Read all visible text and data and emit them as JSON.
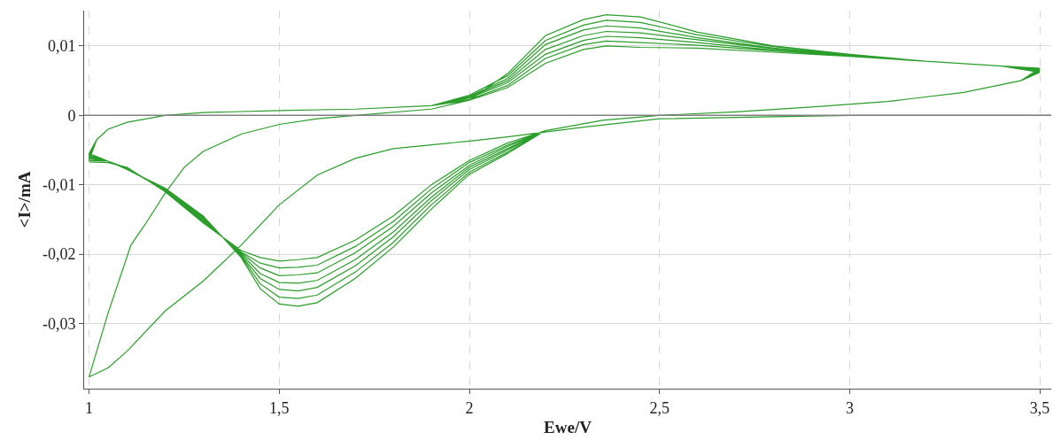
{
  "chart_data": {
    "type": "line",
    "xlabel": "Ewe/V",
    "ylabel": "<I>/mA",
    "xlim": [
      0.987,
      3.53
    ],
    "ylim": [
      -0.0394,
      0.0151
    ],
    "xticks": [
      1,
      {
        "value": 1.5,
        "label": "1,5"
      },
      2,
      {
        "value": 2.5,
        "label": "2,5"
      },
      3,
      {
        "value": 3.5,
        "label": "3,5"
      }
    ],
    "yticks": [
      {
        "value": -0.03,
        "label": "-0,03"
      },
      {
        "value": -0.02,
        "label": "-0,02"
      },
      {
        "value": -0.01,
        "label": "-0,01"
      },
      0,
      {
        "value": 0.01,
        "label": "0,01"
      }
    ],
    "grid": true,
    "marker": "none",
    "line_style": "solid",
    "ref_lines": [
      {
        "axis": "y",
        "value": 0,
        "color": "#808080"
      }
    ],
    "series": [
      {
        "color": "#2a9d2a",
        "x": [
          3.53,
          3.5,
          3.0,
          2.8,
          2.5,
          2.3,
          2.1,
          2.0,
          1.8,
          1.7,
          1.6,
          1.5,
          1.4,
          1.3,
          1.2,
          1.1,
          1.05,
          1.0,
          1.05,
          1.11,
          1.15,
          1.2,
          1.25,
          1.3,
          1.4,
          1.5,
          1.6,
          1.7,
          1.9,
          2.0,
          2.1,
          2.2,
          2.3,
          2.36,
          2.45,
          2.6,
          2.8,
          3.0,
          3.2,
          3.4,
          3.5,
          3.45,
          3.3,
          3.1,
          2.9,
          2.7,
          2.5,
          2.35,
          2.2,
          2.1,
          2.0,
          1.9,
          1.8,
          1.7,
          1.6,
          1.55,
          1.5,
          1.45,
          1.4,
          1.3,
          1.2,
          1.1,
          1.05,
          1.0,
          1.02,
          1.05,
          1.1,
          1.2,
          1.3,
          1.5,
          1.7,
          1.9,
          2.0,
          2.1,
          2.2,
          2.3,
          2.36,
          2.45,
          2.6,
          2.8,
          3.0,
          3.2,
          3.4,
          3.5,
          3.45,
          3.3,
          3.1,
          2.9,
          2.7,
          2.5,
          2.35,
          2.2,
          2.1,
          2.0,
          1.9,
          1.8,
          1.7,
          1.6,
          1.55,
          1.5,
          1.45,
          1.4,
          1.3,
          1.2,
          1.1,
          1.05,
          1.0,
          1.02,
          1.05,
          1.1,
          1.2,
          1.3,
          1.5,
          1.7,
          1.9,
          2.0,
          2.1,
          2.2,
          2.3,
          2.36,
          2.45,
          2.6,
          2.8,
          3.0,
          3.2,
          3.4,
          3.5,
          3.45,
          3.3,
          3.1,
          2.9,
          2.7,
          2.5,
          2.35,
          2.2,
          2.1,
          2.0,
          1.9,
          1.8,
          1.7,
          1.6,
          1.55,
          1.5,
          1.45,
          1.4,
          1.3,
          1.2,
          1.1,
          1.05,
          1.0,
          1.02,
          1.05,
          1.1,
          1.2,
          1.3,
          1.5,
          1.7,
          1.9,
          2.0,
          2.1,
          2.2,
          2.3,
          2.36,
          2.45,
          2.6,
          2.8,
          3.0,
          3.2,
          3.4,
          3.5,
          3.45,
          3.3,
          3.1,
          2.9,
          2.7,
          2.5,
          2.35,
          2.2,
          2.1,
          2.0,
          1.9,
          1.8,
          1.7,
          1.6,
          1.55,
          1.5,
          1.45,
          1.4,
          1.3,
          1.2,
          1.1,
          1.05,
          1.0,
          1.02,
          1.05,
          1.1,
          1.2,
          1.3,
          1.5,
          1.7,
          1.9,
          2.0,
          2.1,
          2.2,
          2.3,
          2.36,
          2.45,
          2.6,
          2.8,
          3.0,
          3.2,
          3.4,
          3.5,
          3.45,
          3.3,
          3.1,
          2.9,
          2.7,
          2.5,
          2.35,
          2.2,
          2.1,
          2.0,
          1.9,
          1.8,
          1.7,
          1.6,
          1.55,
          1.5,
          1.45,
          1.4,
          1.3,
          1.2,
          1.1,
          1.05,
          1.0,
          1.02,
          1.05,
          1.1,
          1.2,
          1.3,
          1.5,
          1.7,
          1.9,
          2.0,
          2.1,
          2.2,
          2.3,
          2.36,
          2.45,
          2.6,
          2.8,
          3.0,
          3.2,
          3.4,
          3.5,
          3.45,
          3.3,
          3.1,
          2.9,
          2.7,
          2.5,
          2.35,
          2.2,
          2.1,
          2.0,
          1.9,
          1.8,
          1.7,
          1.6,
          1.55,
          1.5,
          1.45,
          1.4,
          1.3,
          1.2,
          1.1,
          1.05,
          1.0,
          1.02,
          1.05,
          1.1,
          1.2,
          1.3,
          1.5,
          1.7,
          1.9,
          2.0,
          2.1,
          2.2,
          2.3,
          2.36,
          2.45,
          2.6,
          2.8,
          3.0,
          3.2,
          3.4,
          3.5,
          3.45,
          3.3,
          3.1,
          2.9,
          2.7,
          2.5,
          2.35,
          2.2,
          2.1,
          2.0,
          1.9,
          1.8,
          1.7,
          1.6,
          1.55,
          1.5,
          1.45,
          1.4,
          1.3,
          1.2,
          1.1,
          1.05,
          1.0
        ],
        "values": [
          0,
          0,
          0,
          -0.0002,
          -0.0005,
          -0.0017,
          -0.0031,
          -0.0037,
          -0.0048,
          -0.0062,
          -0.0086,
          -0.0129,
          -0.0187,
          -0.0239,
          -0.0282,
          -0.034,
          -0.0364,
          -0.0377,
          -0.0285,
          -0.0187,
          -0.0155,
          -0.0112,
          -0.0075,
          -0.0052,
          -0.0027,
          -0.0013,
          -0.0005,
          0,
          0.0009,
          0.0022,
          0.006,
          0.0115,
          0.0138,
          0.0145,
          0.0142,
          0.012,
          0.01,
          0.0088,
          0.0078,
          0.0071,
          0.0068,
          0.005,
          0.0033,
          0.002,
          0.0012,
          0.0005,
          0,
          -0.0007,
          -0.0022,
          -0.0055,
          -0.0085,
          -0.0135,
          -0.019,
          -0.0235,
          -0.027,
          -0.0275,
          -0.0272,
          -0.025,
          -0.0205,
          -0.0145,
          -0.0105,
          -0.0078,
          -0.0066,
          -0.0055,
          -0.0035,
          -0.002,
          -0.001,
          0,
          0.0004,
          0.0007,
          0.0009,
          0.0014,
          0.0029,
          0.0057,
          0.0108,
          0.013,
          0.0137,
          0.0134,
          0.0116,
          0.0099,
          0.0088,
          0.0078,
          0.0071,
          0.0067,
          0.005,
          0.0033,
          0.002,
          0.0012,
          0.0005,
          0,
          -0.0007,
          -0.0022,
          -0.0053,
          -0.0082,
          -0.0129,
          -0.0183,
          -0.0226,
          -0.0259,
          -0.0264,
          -0.0262,
          -0.0243,
          -0.0203,
          -0.0147,
          -0.0106,
          -0.0078,
          -0.0066,
          -0.0057,
          -0.0035,
          -0.002,
          -0.001,
          0,
          0.0004,
          0.0007,
          0.0009,
          0.0014,
          0.0027,
          0.0053,
          0.0102,
          0.0123,
          0.0129,
          0.0126,
          0.0112,
          0.0097,
          0.0087,
          0.0078,
          0.0071,
          0.0066,
          0.005,
          0.0033,
          0.002,
          0.0012,
          0.0005,
          0,
          -0.0007,
          -0.0022,
          -0.005,
          -0.0078,
          -0.0123,
          -0.0175,
          -0.0217,
          -0.0248,
          -0.0253,
          -0.0251,
          -0.0235,
          -0.0202,
          -0.0148,
          -0.0107,
          -0.0077,
          -0.0066,
          -0.0059,
          -0.0035,
          -0.002,
          -0.001,
          0,
          0.0004,
          0.0007,
          0.0009,
          0.0014,
          0.0026,
          0.005,
          0.0095,
          0.0115,
          0.0121,
          0.0119,
          0.0109,
          0.0096,
          0.0087,
          0.0078,
          0.0071,
          0.0065,
          0.005,
          0.0033,
          0.002,
          0.0012,
          0.0005,
          0,
          -0.0007,
          -0.0022,
          -0.0048,
          -0.0075,
          -0.0118,
          -0.0168,
          -0.0208,
          -0.0238,
          -0.0242,
          -0.0241,
          -0.0228,
          -0.02,
          -0.015,
          -0.0108,
          -0.0077,
          -0.0066,
          -0.0061,
          -0.0035,
          -0.002,
          -0.001,
          0,
          0.0004,
          0.0007,
          0.0009,
          0.0014,
          0.0025,
          0.0047,
          0.0088,
          0.0108,
          0.0114,
          0.0112,
          0.0105,
          0.0094,
          0.0086,
          0.0078,
          0.0071,
          0.0064,
          0.005,
          0.0033,
          0.002,
          0.0012,
          0.0005,
          0,
          -0.0007,
          -0.0022,
          -0.0045,
          -0.0072,
          -0.0112,
          -0.016,
          -0.0198,
          -0.0227,
          -0.023,
          -0.0231,
          -0.022,
          -0.0198,
          -0.0152,
          -0.0108,
          -0.0076,
          -0.0066,
          -0.0063,
          -0.0035,
          -0.002,
          -0.001,
          0,
          0.0004,
          0.0007,
          0.0009,
          0.0014,
          0.0023,
          0.0043,
          0.0082,
          0.0102,
          0.0107,
          0.0105,
          0.0101,
          0.0093,
          0.0086,
          0.0078,
          0.0071,
          0.0063,
          0.005,
          0.0033,
          0.002,
          0.0012,
          0.0005,
          0,
          -0.0007,
          -0.0022,
          -0.0043,
          -0.0068,
          -0.0106,
          -0.0153,
          -0.0189,
          -0.0216,
          -0.0219,
          -0.022,
          -0.0213,
          -0.0197,
          -0.0153,
          -0.0109,
          -0.0076,
          -0.0066,
          -0.0065,
          -0.0035,
          -0.002,
          -0.001,
          0,
          0.0004,
          0.0007,
          0.0009,
          0.0014,
          0.0022,
          0.004,
          0.0075,
          0.0095,
          0.01,
          0.0098,
          0.0097,
          0.0091,
          0.0085,
          0.0078,
          0.0071,
          0.0062,
          0.005,
          0.0033,
          0.002,
          0.0012,
          0.0005,
          0,
          -0.0007,
          -0.0022,
          -0.004,
          -0.0065,
          -0.01,
          -0.0145,
          -0.018,
          -0.0205,
          -0.0208,
          -0.021,
          -0.0205,
          -0.0195,
          -0.0155,
          -0.011,
          -0.0075,
          -0.0068,
          -0.0067
        ]
      }
    ]
  }
}
